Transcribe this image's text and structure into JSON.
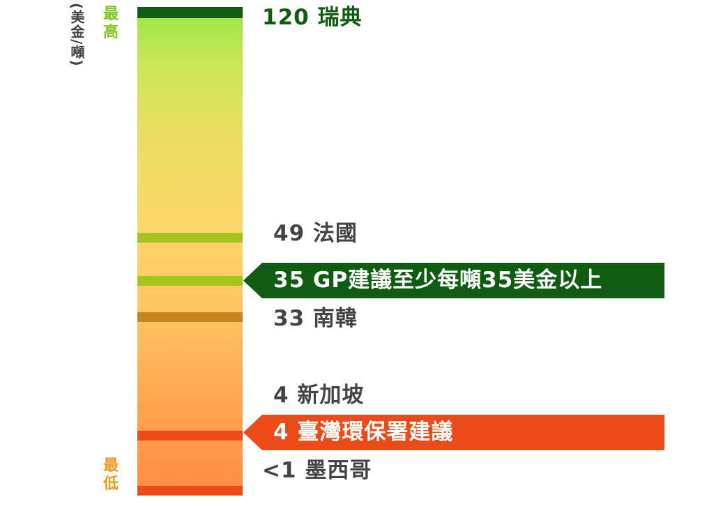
{
  "unit_label": "(美金/噸)",
  "extremes": {
    "high": "最高",
    "low": "最低",
    "high_color": "#7dc61f",
    "low_color": "#f6971c"
  },
  "colors": {
    "sweden_band": "#0f5c12",
    "france_band": "#a4c51d",
    "gp_band": "#a4c51d",
    "korea_band": "#c6861f",
    "taiwan_band": "#ec4a16",
    "bottom_band": "#ec4a16",
    "gp_callout": "#0f5c12",
    "taiwan_callout": "#ec4a16",
    "label_text": "#444444",
    "sweden_text": "#0f5c12"
  },
  "entries": {
    "sweden": "120 瑞典",
    "france": "49 法國",
    "gp": "35 GP建議至少每噸35美金以上",
    "korea": "33 南韓",
    "singapore": "4 新加坡",
    "taiwan": "4 臺灣環保署建議",
    "mexico": "<1 墨西哥"
  }
}
